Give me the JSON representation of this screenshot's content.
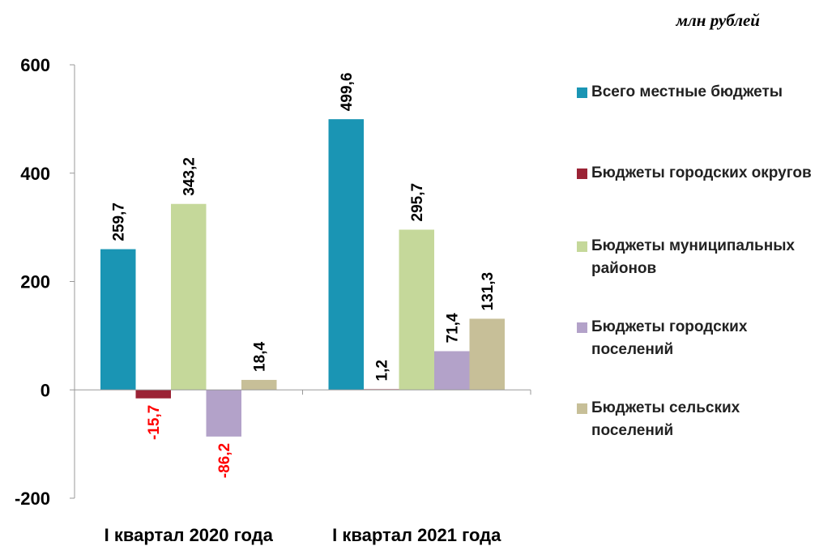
{
  "chart_data": {
    "type": "bar",
    "subtitle": "млн рублей",
    "categories": [
      "I квартал 2020 года",
      "I квартал 2021 года"
    ],
    "series": [
      {
        "name": "Всего местные бюджеты",
        "color": "#1a95b4",
        "values": [
          259.7,
          499.6
        ],
        "value_labels": [
          "259,7",
          "499,6"
        ]
      },
      {
        "name": "Бюджеты городских округов",
        "color": "#9b2335",
        "values": [
          -15.7,
          1.2
        ],
        "value_labels": [
          "-15,7",
          "1,2"
        ]
      },
      {
        "name": "Бюджеты муниципальных районов",
        "color": "#c5d89a",
        "values": [
          343.2,
          295.7
        ],
        "value_labels": [
          "343,2",
          "295,7"
        ]
      },
      {
        "name": "Бюджеты городских поселений",
        "color": "#b3a2c9",
        "values": [
          -86.2,
          71.4
        ],
        "value_labels": [
          "-86,2",
          "71,4"
        ]
      },
      {
        "name": "Бюджеты сельских поселений",
        "color": "#c7bf98",
        "values": [
          18.4,
          131.3
        ],
        "value_labels": [
          "18,4",
          "131,3"
        ]
      }
    ],
    "ylim": [
      -200,
      600
    ],
    "yticks": [
      -200,
      0,
      200,
      400,
      600
    ],
    "grid": false,
    "label_color": "#000000",
    "negative_label_color": "#ff0000",
    "legend": "right"
  }
}
